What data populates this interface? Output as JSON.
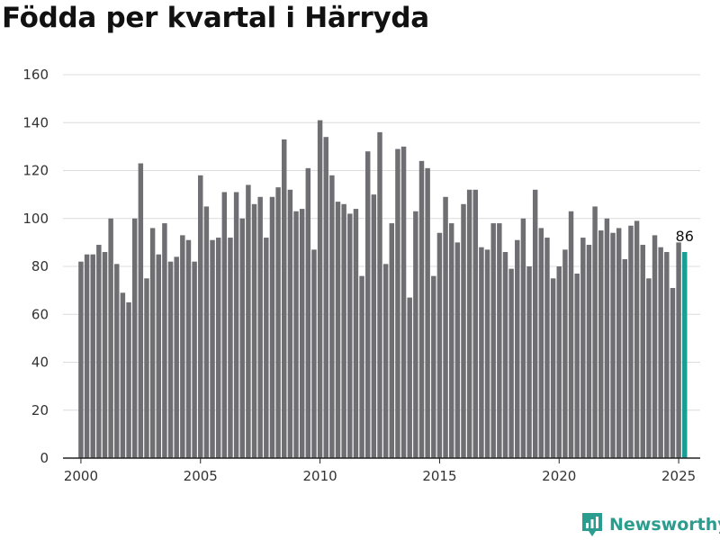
{
  "title": "Födda per kvartal i Härryda",
  "brand": "Newsworthy",
  "colors": {
    "bar": "#6e6e73",
    "highlight": "#1a9e94",
    "grid": "#dcdcdc"
  },
  "chart_data": {
    "type": "bar",
    "title": "Födda per kvartal i Härryda",
    "xlabel": "",
    "ylabel": "",
    "ylim": [
      0,
      160
    ],
    "yticks": [
      0,
      20,
      40,
      60,
      80,
      100,
      120,
      140,
      160
    ],
    "xticks": [
      "2000",
      "2005",
      "2010",
      "2015",
      "2020",
      "2025"
    ],
    "xlim": [
      1999.25,
      2025.9
    ],
    "grid": true,
    "start_year": 2000,
    "period": "quarter",
    "values": [
      82,
      85,
      85,
      89,
      86,
      100,
      81,
      69,
      65,
      100,
      123,
      75,
      96,
      85,
      98,
      82,
      84,
      93,
      91,
      82,
      118,
      105,
      91,
      92,
      111,
      92,
      111,
      100,
      114,
      106,
      109,
      92,
      109,
      113,
      133,
      112,
      103,
      104,
      121,
      87,
      141,
      134,
      118,
      107,
      106,
      102,
      104,
      76,
      128,
      110,
      136,
      81,
      98,
      129,
      130,
      67,
      103,
      124,
      121,
      76,
      94,
      109,
      98,
      90,
      106,
      112,
      112,
      88,
      87,
      98,
      98,
      86,
      79,
      91,
      100,
      80,
      112,
      96,
      92,
      75,
      80,
      87,
      103,
      77,
      92,
      89,
      105,
      95,
      100,
      94,
      96,
      83,
      97,
      99,
      89,
      75,
      93,
      88,
      86,
      71,
      90,
      86
    ],
    "highlight_last": true,
    "last_value_label": "86"
  }
}
